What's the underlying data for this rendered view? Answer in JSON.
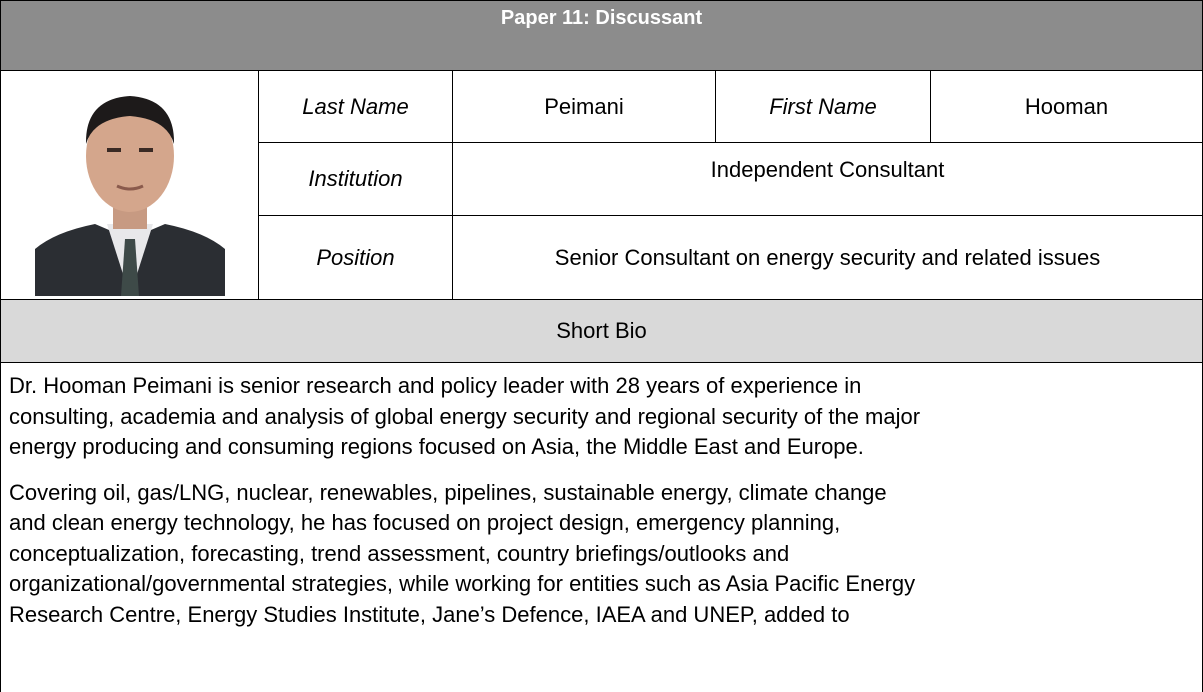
{
  "header": {
    "title": "Paper 11: Discussant"
  },
  "table": {
    "last_name_label": "Last Name",
    "last_name": "Peimani",
    "first_name_label": "First Name",
    "first_name": "Hooman",
    "institution_label": "Institution",
    "institution": "Independent Consultant",
    "position_label": "Position",
    "position": "Senior Consultant on energy security and related issues"
  },
  "bio": {
    "heading": "Short Bio",
    "paragraphs": [
      [
        "Dr. Hooman Peimani is senior research and policy leader with 28 years of experience in",
        "consulting, academia and analysis of global energy security and regional security of the major",
        "energy producing and consuming regions focused on Asia, the Middle East and Europe."
      ],
      [
        "Covering oil, gas/LNG, nuclear, renewables, pipelines, sustainable energy, climate change",
        "and clean energy technology, he has focused on project design, emergency planning,",
        "conceptualization, forecasting, trend assessment, country briefings/outlooks and",
        "organizational/governmental strategies, while working for entities such as Asia Pacific Energy",
        "Research Centre, Energy Studies Institute, Jane’s Defence, IAEA and UNEP, added to"
      ]
    ]
  }
}
